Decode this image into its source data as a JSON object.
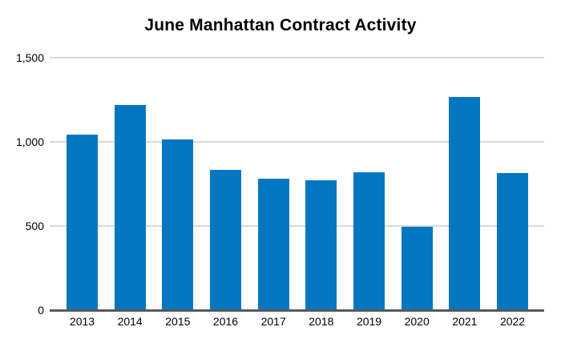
{
  "chart_data": {
    "type": "bar",
    "title": "June Manhattan Contract Activity",
    "categories": [
      "2013",
      "2014",
      "2015",
      "2016",
      "2017",
      "2018",
      "2019",
      "2020",
      "2021",
      "2022"
    ],
    "values": [
      1045,
      1220,
      1015,
      835,
      780,
      770,
      820,
      495,
      1265,
      815
    ],
    "xlabel": "",
    "ylabel": "",
    "ylim": [
      0,
      1500
    ],
    "yticks": [
      0,
      500,
      1000,
      1500
    ],
    "ytick_labels": [
      "0",
      "500",
      "1,000",
      "1,500"
    ],
    "grid": true,
    "legend": false,
    "colors": {
      "bar": "#0077c0",
      "gridline": "#d9d9d9",
      "axis_line": "#595959",
      "background": "#ffffff",
      "text": "#000000"
    }
  }
}
